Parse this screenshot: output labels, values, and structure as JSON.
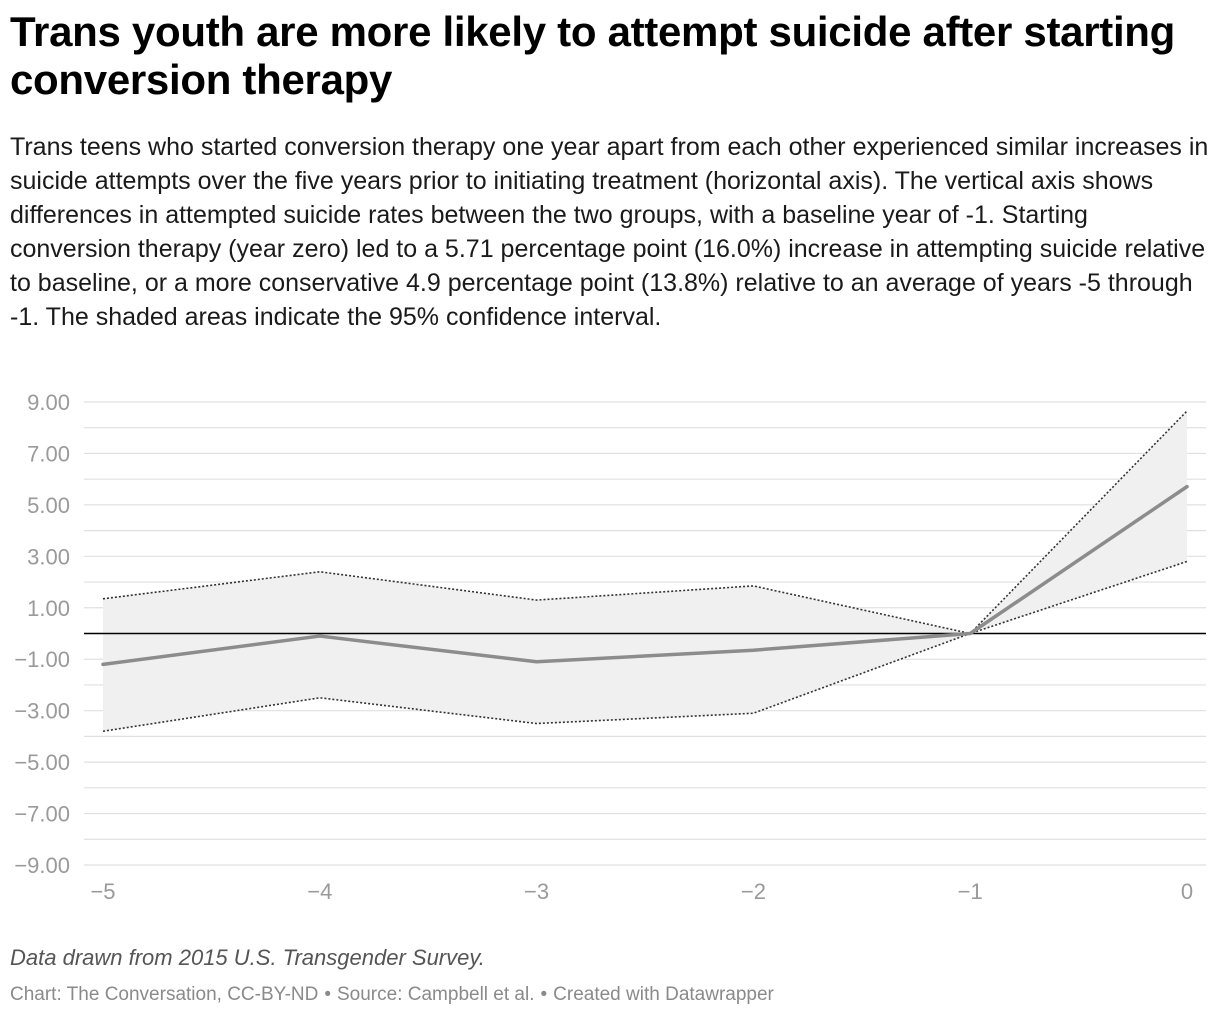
{
  "title": "Trans youth are more likely to attempt suicide after starting conversion therapy",
  "subtitle": "Trans teens who started conversion therapy one year apart from each other experienced similar increases in suicide attempts over the five years prior to initiating treatment (horizontal axis). The vertical axis shows differences in attempted suicide rates between the two groups, with a baseline year of -1. Starting conversion therapy (year zero) led to a 5.71 percentage point (16.0%) increase in attempting suicide relative to baseline, or a more conservative 4.9 percentage point (13.8%) relative to an average of years -5 through -1. The shaded areas indicate the 95% confidence interval.",
  "notes": "Data drawn from 2015 U.S. Transgender Survey.",
  "footer": {
    "chart_credit": "Chart: The Conversation, CC-BY-ND",
    "source": "Source: Campbell et al.",
    "created_with": "Created with Datawrapper",
    "separator": "•"
  },
  "colors": {
    "estimate_line": "#8c8c8c",
    "confidence_band": "#f0f0f0",
    "confidence_bounds": "#333333",
    "zero_line": "#000000",
    "gridline": "#e0e0e0",
    "tick_label": "#9a9a9a"
  },
  "chart_data": {
    "type": "line",
    "x": [
      -5,
      -4,
      -3,
      -2,
      -1,
      0
    ],
    "x_tick_labels": [
      "−5",
      "−4",
      "−3",
      "−2",
      "−1",
      "0"
    ],
    "y_ticks": [
      9,
      7,
      5,
      3,
      1,
      -1,
      -3,
      -5,
      -7,
      -9
    ],
    "y_tick_labels": [
      "9.00",
      "7.00",
      "5.00",
      "3.00",
      "1.00",
      "−1.00",
      "−3.00",
      "−5.00",
      "−7.00",
      "−9.00"
    ],
    "ylim": [
      -9,
      9
    ],
    "xlim": [
      -5,
      0
    ],
    "grid": true,
    "series": [
      {
        "role": "estimate",
        "values": [
          -1.2,
          -0.1,
          -1.1,
          -0.65,
          0,
          5.71
        ]
      },
      {
        "role": "upper_ci",
        "values": [
          1.35,
          2.4,
          1.3,
          1.85,
          0,
          8.65
        ]
      },
      {
        "role": "lower_ci",
        "values": [
          -3.8,
          -2.5,
          -3.5,
          -3.1,
          0,
          2.8
        ]
      }
    ],
    "reference_line_y": 0
  }
}
